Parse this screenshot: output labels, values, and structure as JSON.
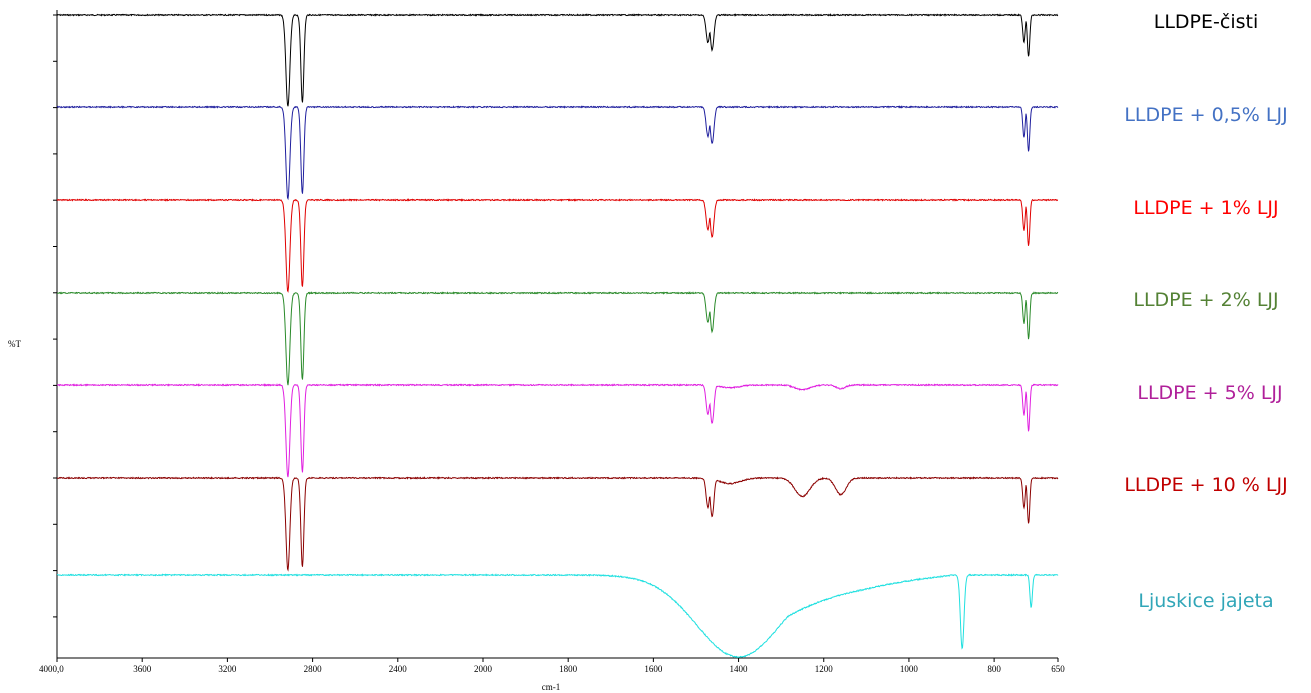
{
  "chart_data": {
    "type": "line",
    "title": "",
    "xlabel": "cm-1",
    "ylabel": "%T",
    "xlim": [
      4000,
      650
    ],
    "x_reversed": true,
    "grid": false,
    "legend": "right",
    "x_ticks": [
      {
        "value": 4000,
        "label": "4000,0"
      },
      {
        "value": 3600,
        "label": "3600"
      },
      {
        "value": 3200,
        "label": "3200"
      },
      {
        "value": 2800,
        "label": "2800"
      },
      {
        "value": 2400,
        "label": "2400"
      },
      {
        "value": 2000,
        "label": "2000"
      },
      {
        "value": 1800,
        "label": "1800"
      },
      {
        "value": 1600,
        "label": "1600"
      },
      {
        "value": 1400,
        "label": "1400"
      },
      {
        "value": 1200,
        "label": "1200"
      },
      {
        "value": 1000,
        "label": "1000"
      },
      {
        "value": 800,
        "label": "800"
      },
      {
        "value": 650,
        "label": "650"
      }
    ],
    "series": [
      {
        "name": "LLDPE-čisti",
        "color": "#000000",
        "baseline": 14,
        "depth": 92,
        "bands": [
          {
            "x": 2916,
            "depth": 1.0,
            "width": 13
          },
          {
            "x": 2848,
            "depth": 0.95,
            "width": 10
          },
          {
            "x": 1472,
            "depth": 0.3,
            "width": 6
          },
          {
            "x": 1462,
            "depth": 0.38,
            "width": 6
          },
          {
            "x": 730,
            "depth": 0.3,
            "width": 4
          },
          {
            "x": 719,
            "depth": 0.45,
            "width": 4
          }
        ]
      },
      {
        "name": "LLDPE + 0,5% LJJ",
        "color": "#1f1f9e",
        "baseline": 14,
        "depth": 92,
        "bands": [
          {
            "x": 2916,
            "depth": 1.0,
            "width": 13
          },
          {
            "x": 2848,
            "depth": 0.95,
            "width": 10
          },
          {
            "x": 1472,
            "depth": 0.32,
            "width": 6
          },
          {
            "x": 1462,
            "depth": 0.4,
            "width": 6
          },
          {
            "x": 730,
            "depth": 0.33,
            "width": 4
          },
          {
            "x": 719,
            "depth": 0.48,
            "width": 4
          }
        ]
      },
      {
        "name": "LLDPE + 1% LJJ",
        "color": "#e00000",
        "baseline": 14,
        "depth": 92,
        "bands": [
          {
            "x": 2916,
            "depth": 1.0,
            "width": 13
          },
          {
            "x": 2848,
            "depth": 0.95,
            "width": 10
          },
          {
            "x": 1472,
            "depth": 0.32,
            "width": 6
          },
          {
            "x": 1462,
            "depth": 0.4,
            "width": 6
          },
          {
            "x": 730,
            "depth": 0.33,
            "width": 4
          },
          {
            "x": 719,
            "depth": 0.5,
            "width": 4
          }
        ]
      },
      {
        "name": "LLDPE + 2% LJJ",
        "color": "#2a8a2a",
        "baseline": 14,
        "depth": 92,
        "bands": [
          {
            "x": 2916,
            "depth": 1.0,
            "width": 13
          },
          {
            "x": 2848,
            "depth": 0.95,
            "width": 10
          },
          {
            "x": 1472,
            "depth": 0.32,
            "width": 6
          },
          {
            "x": 1462,
            "depth": 0.42,
            "width": 6
          },
          {
            "x": 730,
            "depth": 0.33,
            "width": 4
          },
          {
            "x": 719,
            "depth": 0.5,
            "width": 4
          }
        ]
      },
      {
        "name": "LLDPE + 5% LJJ",
        "color": "#e020e0",
        "baseline": 14,
        "depth": 92,
        "bands": [
          {
            "x": 2916,
            "depth": 1.0,
            "width": 13
          },
          {
            "x": 2848,
            "depth": 0.95,
            "width": 10
          },
          {
            "x": 1472,
            "depth": 0.32,
            "width": 6
          },
          {
            "x": 1462,
            "depth": 0.42,
            "width": 6
          },
          {
            "x": 1420,
            "depth": 0.03,
            "width": 30
          },
          {
            "x": 1250,
            "depth": 0.05,
            "width": 25
          },
          {
            "x": 1160,
            "depth": 0.04,
            "width": 15
          },
          {
            "x": 730,
            "depth": 0.33,
            "width": 4
          },
          {
            "x": 719,
            "depth": 0.5,
            "width": 4
          }
        ]
      },
      {
        "name": "LLDPE + 10 % LJJ",
        "color": "#8b0000",
        "baseline": 14,
        "depth": 92,
        "bands": [
          {
            "x": 2916,
            "depth": 1.0,
            "width": 13
          },
          {
            "x": 2848,
            "depth": 0.97,
            "width": 10
          },
          {
            "x": 1472,
            "depth": 0.32,
            "width": 6
          },
          {
            "x": 1462,
            "depth": 0.42,
            "width": 6
          },
          {
            "x": 1420,
            "depth": 0.06,
            "width": 35
          },
          {
            "x": 1250,
            "depth": 0.2,
            "width": 25
          },
          {
            "x": 1160,
            "depth": 0.18,
            "width": 18
          },
          {
            "x": 730,
            "depth": 0.33,
            "width": 4
          },
          {
            "x": 719,
            "depth": 0.5,
            "width": 4
          }
        ]
      },
      {
        "name": "Ljuskice jajeta",
        "color": "#20e0e0",
        "baseline": 14,
        "depth": 82,
        "bands": [
          {
            "x": 1400,
            "depth": 1.0,
            "width": 140
          },
          {
            "x": 875,
            "depth": 0.9,
            "width": 6
          },
          {
            "x": 713,
            "depth": 0.4,
            "width": 4
          }
        ]
      }
    ]
  }
}
